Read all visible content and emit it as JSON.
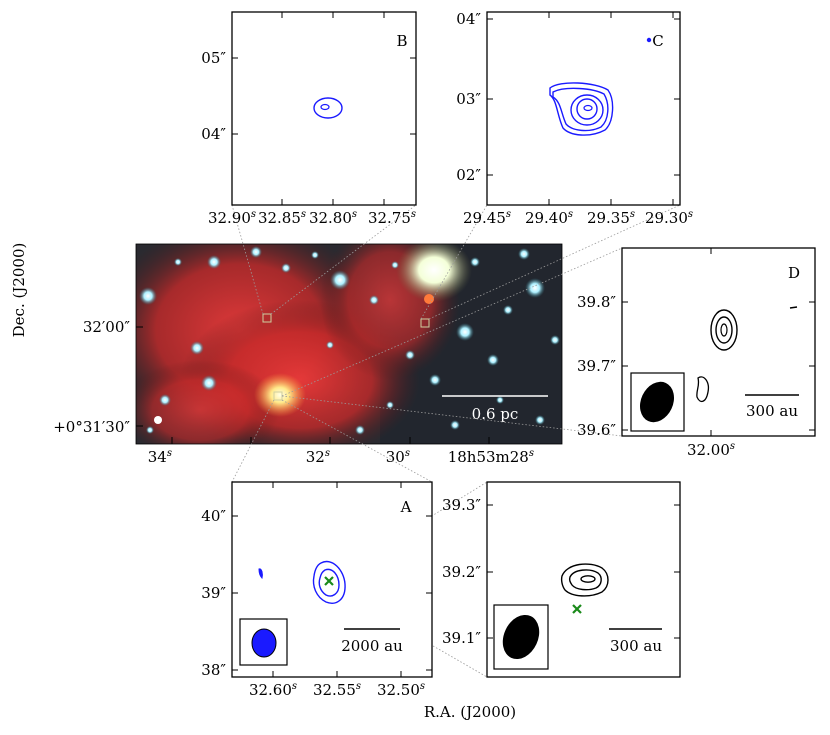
{
  "axes": {
    "xlabel": "R.A. (J2000)",
    "ylabel": "Dec. (J2000)"
  },
  "main_image": {
    "x_ticks": [
      "34",
      "32",
      "30",
      "18h53m28"
    ],
    "x_ticks_sup": [
      "s",
      "s",
      "s",
      "s"
    ],
    "y_ticks": [
      "32′00″",
      "+0°31′30″"
    ],
    "scalebar_label": "0.6 pc"
  },
  "panel_B": {
    "letter": "B",
    "y_ticks": [
      "05″",
      "04″"
    ],
    "x_ticks": [
      "32.90",
      "32.85",
      "32.80",
      "32.75"
    ]
  },
  "panel_C": {
    "letter": "C",
    "y_ticks": [
      "04″",
      "03″",
      "02″"
    ],
    "x_ticks": [
      "29.45",
      "29.40",
      "29.35",
      "29.30"
    ]
  },
  "panel_D": {
    "letter": "D",
    "y_ticks": [
      "39.8″",
      "39.7″",
      "39.6″"
    ],
    "x_ticks": [
      "32.00"
    ],
    "scalebar_label": "300 au"
  },
  "panel_A": {
    "letter": "A",
    "y_ticks": [
      "40″",
      "39″",
      "38″"
    ],
    "x_ticks": [
      "32.60",
      "32.55",
      "32.50"
    ],
    "scalebar_label": "2000 au"
  },
  "panel_A_zoom": {
    "y_ticks": [
      "39.3″",
      "39.2″",
      "39.1″"
    ],
    "scalebar_label": "300 au"
  },
  "colors": {
    "contour_blue": "#1a1aff",
    "contour_black": "#000000",
    "marker_green": "#1a8a1a",
    "beam_blue": "#1a1aff"
  }
}
